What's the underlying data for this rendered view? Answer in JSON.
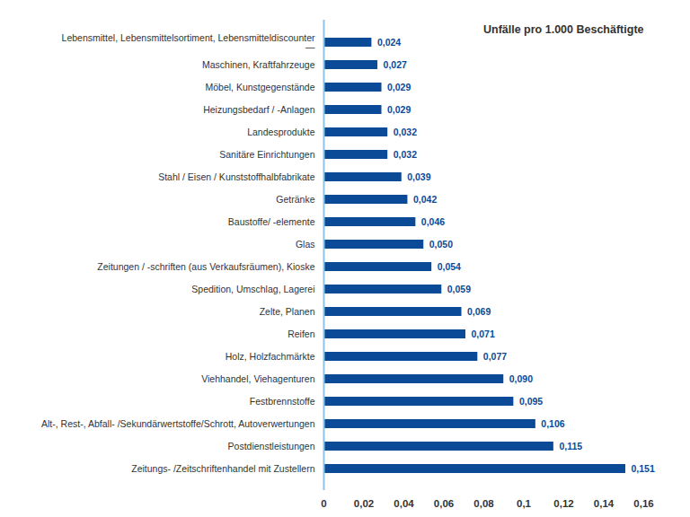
{
  "chart_data": {
    "type": "bar",
    "title": "Unfälle pro 1.000 Beschäftigte",
    "orientation": "horizontal",
    "categories": [
      "Lebensmittel, Lebensmittelsortiment, Lebensmitteldiscounter\n—",
      "Maschinen, Kraftfahrzeuge",
      "Möbel, Kunstgegenstände",
      "Heizungsbedarf / -Anlagen",
      "Landesprodukte",
      "Sanitäre Einrichtungen",
      "Stahl / Eisen / Kunststoffhalbfabrikate",
      "Getränke",
      "Baustoffe/ -elemente",
      "Glas",
      "Zeitungen / -schriften (aus Verkaufsräumen), Kioske",
      "Spedition, Umschlag, Lagerei",
      "Zelte, Planen",
      "Reifen",
      "Holz, Holzfachmärkte",
      "Viehhandel, Viehagenturen",
      "Festbrennstoffe",
      "Alt-, Rest-, Abfall- /Sekundärwertstoffe/Schrott, Autoverwertungen",
      "Postdienstleistungen",
      "Zeitungs- /Zeitschriftenhandel mit Zustellern"
    ],
    "values": [
      0.024,
      0.027,
      0.029,
      0.029,
      0.032,
      0.032,
      0.039,
      0.042,
      0.046,
      0.05,
      0.054,
      0.059,
      0.069,
      0.071,
      0.077,
      0.09,
      0.095,
      0.106,
      0.115,
      0.151
    ],
    "value_labels": [
      "0,024",
      "0,027",
      "0,029",
      "0,029",
      "0,032",
      "0,032",
      "0,039",
      "0,042",
      "0,046",
      "0,050",
      "0,054",
      "0,059",
      "0,069",
      "0,071",
      "0,077",
      "0,090",
      "0,095",
      "0,106",
      "0,115",
      "0,151"
    ],
    "color": "#0b4a97",
    "data_labels": true,
    "grid": false,
    "xlim": [
      0,
      0.16
    ],
    "xticks": [
      0,
      {
        "value": 0.02,
        "label": "0,02"
      },
      {
        "value": 0.04,
        "label": "0,04"
      },
      {
        "value": 0.06,
        "label": "0,06"
      },
      {
        "value": 0.08,
        "label": "0,08"
      },
      {
        "value": 0.1,
        "label": "0,1"
      },
      {
        "value": 0.12,
        "label": "0,12"
      },
      {
        "value": 0.14,
        "label": "0,14"
      },
      {
        "value": 0.16,
        "label": "0,16"
      }
    ]
  }
}
